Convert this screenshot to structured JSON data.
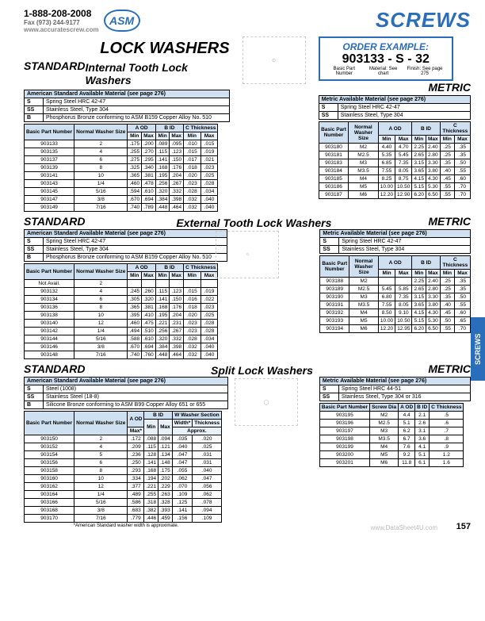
{
  "header": {
    "phone": "1-888-208-2008",
    "fax": "Fax (973) 244-9177",
    "url": "www.accuratescrew.com",
    "asm": "ASM",
    "wm": "www.DataSheet4U.com",
    "screws": "SCREWS"
  },
  "title": "LOCK WASHERS",
  "sub1": "Internal Tooth Lock Washers",
  "sub2": "External Tooth Lock Washers",
  "sub3": "Split Lock Washers",
  "standard": "STANDARD",
  "metric": "METRIC",
  "order": {
    "ttl": "ORDER EXAMPLE:",
    "ex": "903133 - S - 32",
    "l1": "Basic Part Number",
    "l2": "Material: See chart",
    "l3": "Finish: See page 275"
  },
  "mat_std_hdr": "American Standard Available Material (see page 276)",
  "mat_met_hdr": "Metric Available Material (see page 276)",
  "mat_std": [
    {
      "c": "S",
      "t": "Spring Steel HRC 42-47"
    },
    {
      "c": "SS",
      "t": "Stainless Steel, Type 304"
    },
    {
      "c": "B",
      "t": "Phosphorus Bronze conforming to ASM B159 Copper Alloy No. 510"
    }
  ],
  "mat_met": [
    {
      "c": "S",
      "t": "Spring Steel HRC 42-47"
    },
    {
      "c": "SS",
      "t": "Stainless Steel, Type 304"
    }
  ],
  "mat_split_std": [
    {
      "c": "S",
      "t": "Steel (1008)"
    },
    {
      "c": "SS",
      "t": "Stainless Steel (18-8)"
    },
    {
      "c": "B",
      "t": "Silicone Bronze conforming to ASM B99 Copper Alloy 651 or 655"
    }
  ],
  "mat_split_met": [
    {
      "c": "S",
      "t": "Spring Steel HRC 44-51"
    },
    {
      "c": "SS",
      "t": "Stainless Steel, Type 304 or 316"
    }
  ],
  "th_std": {
    "c1": "Basic Part Number",
    "c2": "Normal Washer Size",
    "a": "A OD",
    "b": "B ID",
    "c": "C Thickness",
    "min": "Min",
    "max": "Max"
  },
  "t1_rows": [
    [
      "903133",
      "2",
      ".175",
      ".200",
      ".089",
      ".095",
      ".010",
      ".015"
    ],
    [
      "903135",
      "4",
      ".255",
      ".270",
      ".115",
      ".123",
      ".015",
      ".019"
    ],
    [
      "903137",
      "6",
      ".275",
      ".295",
      ".141",
      ".150",
      ".017",
      ".021"
    ],
    [
      "903139",
      "8",
      ".325",
      ".340",
      ".168",
      ".176",
      ".018",
      ".023"
    ],
    [
      "903141",
      "10",
      ".365",
      ".381",
      ".195",
      ".204",
      ".020",
      ".025"
    ],
    [
      "903143",
      "1/4",
      ".460",
      ".478",
      ".256",
      ".267",
      ".023",
      ".028"
    ],
    [
      "903145",
      "5/16",
      ".594",
      ".610",
      ".320",
      ".332",
      ".028",
      ".034"
    ],
    [
      "903147",
      "3/8",
      ".670",
      ".694",
      ".384",
      ".398",
      ".032",
      ".040"
    ],
    [
      "903149",
      "7/16",
      ".740",
      ".789",
      ".448",
      ".464",
      ".032",
      ".040"
    ]
  ],
  "t1m_rows": [
    [
      "903180",
      "M2",
      "4.40",
      "4.70",
      "2.25",
      "2.40",
      ".25",
      ".35"
    ],
    [
      "903181",
      "M2.5",
      "5.35",
      "5.45",
      "2.65",
      "2.80",
      ".25",
      ".35"
    ],
    [
      "903183",
      "M3",
      "6.85",
      "7.35",
      "3.15",
      "3.30",
      ".35",
      ".50"
    ],
    [
      "903184",
      "M3.5",
      "7.55",
      "8.05",
      "3.65",
      "3.80",
      ".40",
      ".55"
    ],
    [
      "903185",
      "M4",
      "8.25",
      "8.75",
      "4.15",
      "4.30",
      ".45",
      ".60"
    ],
    [
      "903186",
      "M5",
      "10.00",
      "10.50",
      "5.15",
      "5.30",
      ".55",
      ".70"
    ],
    [
      "903187",
      "M6",
      "12.20",
      "12.90",
      "6.20",
      "6.50",
      ".55",
      ".70"
    ]
  ],
  "t2_rows": [
    [
      "Not Avail.",
      "2",
      "",
      "",
      "",
      "",
      "",
      ""
    ],
    [
      "903132",
      "4",
      ".245",
      ".260",
      ".115",
      ".123",
      ".015",
      ".019"
    ],
    [
      "903134",
      "6",
      ".305",
      ".320",
      ".141",
      ".150",
      ".016",
      ".022"
    ],
    [
      "903136",
      "8",
      ".365",
      ".381",
      ".168",
      ".176",
      ".018",
      ".023"
    ],
    [
      "903138",
      "10",
      ".395",
      ".410",
      ".195",
      ".204",
      ".020",
      ".025"
    ],
    [
      "903140",
      "12",
      ".460",
      ".475",
      ".221",
      ".231",
      ".023",
      ".028"
    ],
    [
      "903142",
      "1/4",
      ".494",
      ".510",
      ".256",
      ".267",
      ".023",
      ".028"
    ],
    [
      "903144",
      "5/16",
      ".588",
      ".610",
      ".320",
      ".332",
      ".028",
      ".034"
    ],
    [
      "903146",
      "3/8",
      ".670",
      ".694",
      ".384",
      ".398",
      ".032",
      ".040"
    ],
    [
      "903148",
      "7/16",
      ".740",
      ".760",
      ".448",
      ".464",
      ".032",
      ".040"
    ]
  ],
  "t2m_rows": [
    [
      "903188",
      "M2",
      "",
      "",
      "2.25",
      "2.40",
      ".25",
      ".35"
    ],
    [
      "903189",
      "M2.5",
      "5.45",
      "5.85",
      "2.65",
      "2.80",
      ".25",
      ".35"
    ],
    [
      "903190",
      "M3",
      "6.80",
      "7.35",
      "3.15",
      "3.30",
      ".35",
      ".50"
    ],
    [
      "903191",
      "M3.5",
      "7.55",
      "8.05",
      "3.65",
      "3.80",
      ".40",
      ".55"
    ],
    [
      "903192",
      "M4",
      "8.50",
      "9.10",
      "4.15",
      "4.30",
      ".45",
      ".60"
    ],
    [
      "903193",
      "M5",
      "10.00",
      "10.50",
      "5.15",
      "5.30",
      ".50",
      ".65"
    ],
    [
      "903194",
      "M6",
      "12.20",
      "12.95",
      "6.20",
      "6.50",
      ".55",
      ".70"
    ]
  ],
  "th_split_std": {
    "c1": "Basic Part Number",
    "c2": "Normal Washer Size",
    "a": "A OD",
    "b": "B ID",
    "w": "W Washer Section",
    "wd": "Width*",
    "th": "Thickness",
    "max": "Max*",
    "min": "Min",
    "apx": "Approx."
  },
  "t3_rows": [
    [
      "903150",
      "2",
      ".172",
      ".088",
      ".094",
      ".035",
      ".020"
    ],
    [
      "903152",
      "4",
      ".209",
      ".115",
      ".121",
      ".040",
      ".025"
    ],
    [
      "903154",
      "5",
      ".236",
      ".128",
      ".134",
      ".047",
      ".031"
    ],
    [
      "903156",
      "6",
      ".250",
      ".141",
      ".148",
      ".047",
      ".031"
    ],
    [
      "903158",
      "8",
      ".293",
      ".168",
      ".175",
      ".055",
      ".040"
    ],
    [
      "903160",
      "10",
      ".334",
      ".194",
      ".202",
      ".062",
      ".047"
    ],
    [
      "903162",
      "12",
      ".377",
      ".221",
      ".229",
      ".070",
      ".056"
    ],
    [
      "903164",
      "1/4",
      ".489",
      ".255",
      ".263",
      ".109",
      ".062"
    ],
    [
      "903166",
      "5/16",
      ".586",
      ".318",
      ".328",
      ".125",
      ".078"
    ],
    [
      "903168",
      "3/8",
      ".683",
      ".382",
      ".393",
      ".141",
      ".094"
    ],
    [
      "903170",
      "7/16",
      ".779",
      ".446",
      ".459",
      ".156",
      ".109"
    ]
  ],
  "th_split_met": {
    "c1": "Basic Part Number",
    "c2": "Screw Dia",
    "a": "A OD",
    "b": "B ID",
    "c": "C Thickness"
  },
  "t3m_rows": [
    [
      "903195",
      "M2",
      "4.4",
      "2.1",
      ".5"
    ],
    [
      "903196",
      "M2.5",
      "5.1",
      "2.6",
      ".6"
    ],
    [
      "903197",
      "M3",
      "6.2",
      "3.1",
      ".7"
    ],
    [
      "903198",
      "M3.5",
      "6.7",
      "3.6",
      ".8"
    ],
    [
      "903199",
      "M4",
      "7.6",
      "4.1",
      ".9"
    ],
    [
      "903200",
      "M5",
      "9.2",
      "5.1",
      "1.2"
    ],
    [
      "903201",
      "M6",
      "11.8",
      "6.1",
      "1.6"
    ]
  ],
  "footnote": "*American Standard washer width is approximate.",
  "side": "SCREWS",
  "pagenum": "157",
  "wm2": "www.DataSheet4U.com"
}
